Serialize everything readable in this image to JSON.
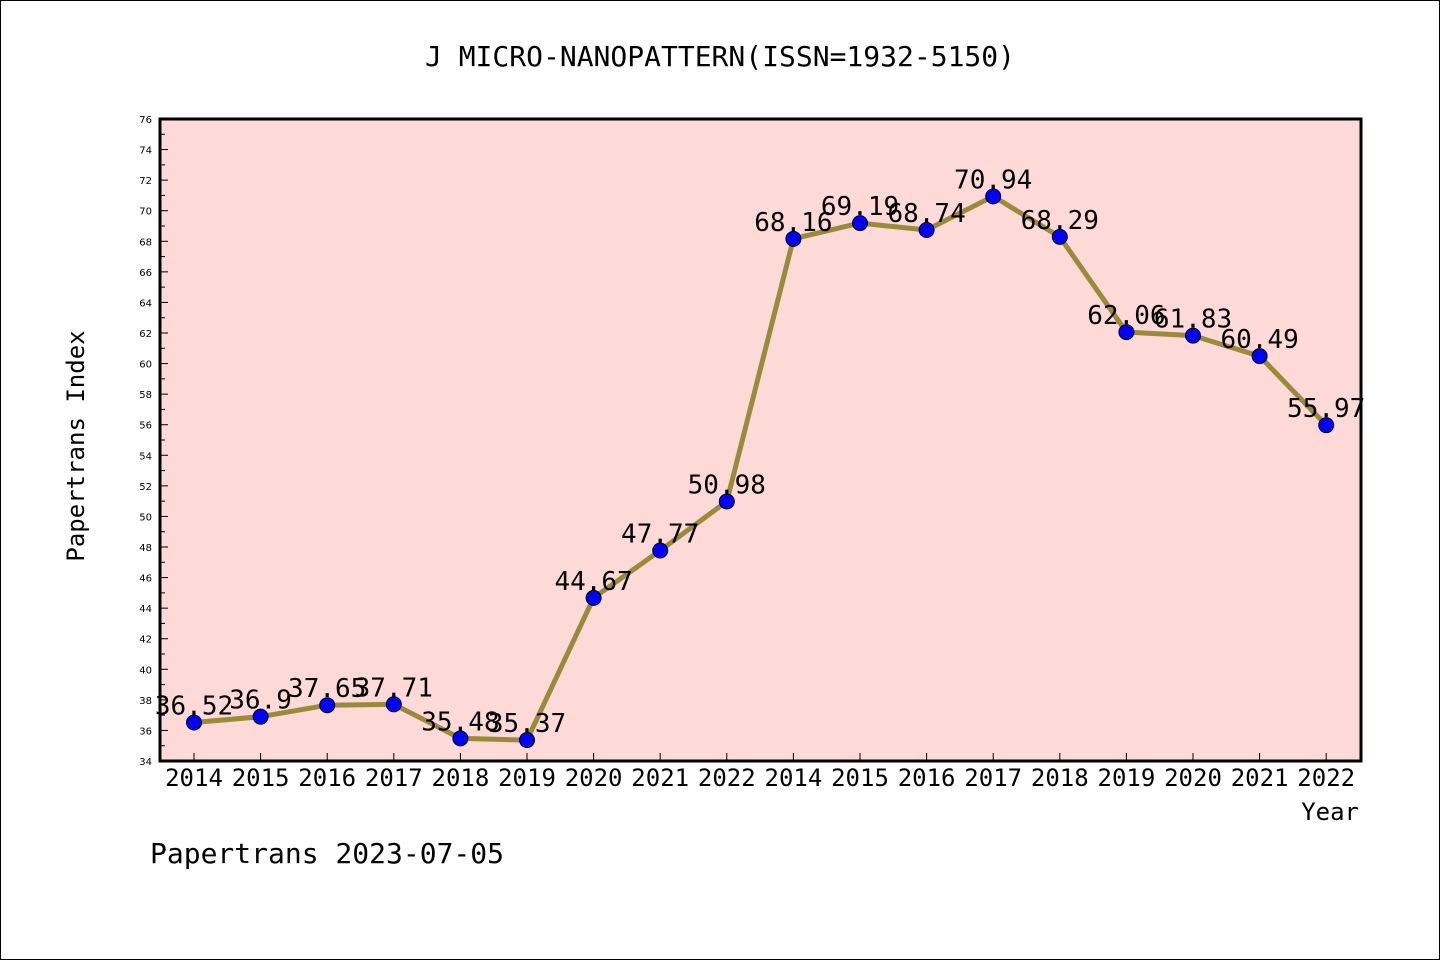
{
  "chart_data": {
    "type": "line",
    "title": "J MICRO-NANOPATTERN(ISSN=1932-5150)",
    "xlabel": "Year",
    "ylabel": "Papertrans Index",
    "categories": [
      "2014",
      "2015",
      "2016",
      "2017",
      "2018",
      "2019",
      "2020",
      "2021",
      "2022",
      "2014",
      "2015",
      "2016",
      "2017",
      "2018",
      "2019",
      "2020",
      "2021",
      "2022"
    ],
    "value_labels": [
      "36.52",
      "36.9",
      "37.65",
      "37.71",
      "35.48",
      "35.37",
      "44.67",
      "47.77",
      "50.98",
      "68.16",
      "69.19",
      "68.74",
      "70.94",
      "68.29",
      "62.06",
      "61.83",
      "60.49",
      "55.97"
    ],
    "series": [
      {
        "values": [
          36.52,
          36.9,
          37.65,
          37.71,
          35.48,
          35.37,
          44.67,
          47.77,
          50.98,
          68.16,
          69.19,
          68.74,
          70.94,
          68.29,
          62.06,
          61.83,
          60.49,
          55.97
        ]
      }
    ],
    "ylim": [
      34,
      76
    ],
    "ytick_step": 2,
    "grid": false,
    "colors": {
      "plot_background": "#fddad8",
      "line": "#9a8a3a",
      "marker": "#0000ff",
      "marker_edge": "#000000"
    },
    "footer": "Papertrans 2023-07-05"
  }
}
